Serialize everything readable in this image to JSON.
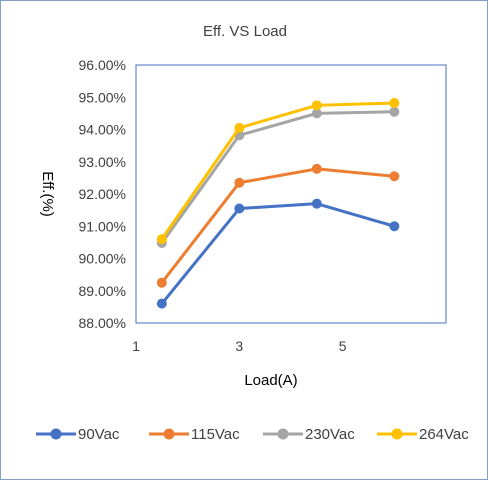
{
  "chart_data": {
    "type": "line",
    "title": "Eff. VS Load",
    "xlabel": "Load(A)",
    "ylabel": "Eff.(%)",
    "xlim": [
      1,
      7
    ],
    "ylim": [
      88,
      96
    ],
    "x_ticks": [
      1,
      3,
      5
    ],
    "x_tick_labels": [
      "1",
      "3",
      "5"
    ],
    "y_ticks": [
      88,
      89,
      90,
      91,
      92,
      93,
      94,
      95,
      96
    ],
    "y_tick_labels": [
      "88.00%",
      "89.00%",
      "90.00%",
      "91.00%",
      "92.00%",
      "93.00%",
      "94.00%",
      "95.00%",
      "96.00%"
    ],
    "x": [
      1.5,
      3,
      4.5,
      6
    ],
    "series": [
      {
        "name": "90Vac",
        "color": "#4472c4",
        "values": [
          88.6,
          91.55,
          91.7,
          91.0
        ]
      },
      {
        "name": "115Vac",
        "color": "#ed7d31",
        "values": [
          89.25,
          92.35,
          92.78,
          92.55
        ]
      },
      {
        "name": "230Vac",
        "color": "#a5a5a5",
        "values": [
          90.48,
          93.82,
          94.5,
          94.55
        ]
      },
      {
        "name": "264Vac",
        "color": "#ffc000",
        "values": [
          90.6,
          94.05,
          94.75,
          94.82
        ]
      }
    ],
    "grid": false,
    "legend_position": "bottom",
    "plot_border_color": "#4472c4"
  }
}
